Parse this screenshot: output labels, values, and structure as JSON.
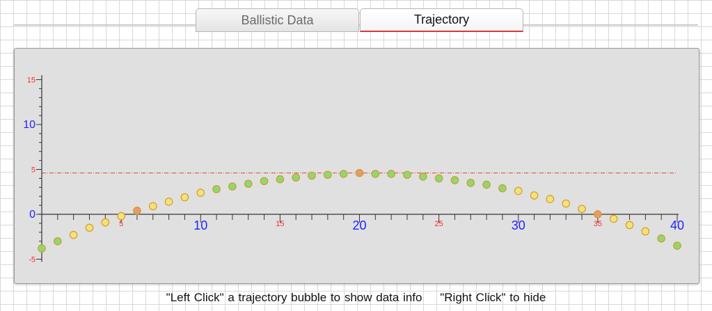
{
  "tabs": [
    {
      "label": "Ballistic Data",
      "active": false
    },
    {
      "label": "Trajectory",
      "active": true
    }
  ],
  "instructions": {
    "left": "\"Left Click\" a trajectory bubble to show data info",
    "right": "\"Right Click\" to hide"
  },
  "colors": {
    "major_tick_label": "#2323ff",
    "minor_tick_label": "#ff2a2a",
    "zero_line_label": "#2323ff",
    "sight_line": "#d94a2a",
    "bubble_green": "#8ed873",
    "bubble_yellow": "#f3e27a",
    "bubble_orange": "#e59b6f",
    "bubble_outline": "#d49a2a"
  },
  "chart_data": {
    "type": "scatter",
    "title": "",
    "xlabel": "",
    "ylabel": "",
    "xlim": [
      0,
      40
    ],
    "ylim": [
      -5,
      16
    ],
    "x_tick_labels": [
      {
        "value": 5,
        "label": "5",
        "major": false
      },
      {
        "value": 10,
        "label": "10",
        "major": true
      },
      {
        "value": 15,
        "label": "15",
        "major": false
      },
      {
        "value": 20,
        "label": "20",
        "major": true
      },
      {
        "value": 25,
        "label": "25",
        "major": false
      },
      {
        "value": 30,
        "label": "30",
        "major": true
      },
      {
        "value": 35,
        "label": "35",
        "major": false
      },
      {
        "value": 40,
        "label": "40",
        "major": true
      }
    ],
    "y_tick_labels": [
      {
        "value": -5,
        "label": "-5",
        "major": false
      },
      {
        "value": 0,
        "label": "0",
        "major": true
      },
      {
        "value": 5,
        "label": "5",
        "major": false
      },
      {
        "value": 10,
        "label": "10",
        "major": true
      },
      {
        "value": 15,
        "label": "15",
        "major": false
      }
    ],
    "sight_line_y": 4.6,
    "grid": false,
    "trajectory": [
      {
        "x": 0,
        "y": -3.8,
        "color": "green"
      },
      {
        "x": 1,
        "y": -3.0,
        "color": "green"
      },
      {
        "x": 2,
        "y": -2.3,
        "color": "yellow"
      },
      {
        "x": 3,
        "y": -1.5,
        "color": "yellow"
      },
      {
        "x": 4,
        "y": -0.9,
        "color": "yellow"
      },
      {
        "x": 5,
        "y": -0.2,
        "color": "yellow"
      },
      {
        "x": 6,
        "y": 0.4,
        "color": "orange"
      },
      {
        "x": 7,
        "y": 0.9,
        "color": "yellow"
      },
      {
        "x": 8,
        "y": 1.4,
        "color": "yellow"
      },
      {
        "x": 9,
        "y": 1.9,
        "color": "yellow"
      },
      {
        "x": 10,
        "y": 2.4,
        "color": "yellow"
      },
      {
        "x": 11,
        "y": 2.8,
        "color": "green"
      },
      {
        "x": 12,
        "y": 3.1,
        "color": "green"
      },
      {
        "x": 13,
        "y": 3.4,
        "color": "green"
      },
      {
        "x": 14,
        "y": 3.7,
        "color": "green"
      },
      {
        "x": 15,
        "y": 3.9,
        "color": "green"
      },
      {
        "x": 16,
        "y": 4.1,
        "color": "green"
      },
      {
        "x": 17,
        "y": 4.3,
        "color": "green"
      },
      {
        "x": 18,
        "y": 4.4,
        "color": "green"
      },
      {
        "x": 19,
        "y": 4.5,
        "color": "green"
      },
      {
        "x": 20,
        "y": 4.6,
        "color": "orange"
      },
      {
        "x": 21,
        "y": 4.5,
        "color": "green"
      },
      {
        "x": 22,
        "y": 4.5,
        "color": "green"
      },
      {
        "x": 23,
        "y": 4.4,
        "color": "green"
      },
      {
        "x": 24,
        "y": 4.2,
        "color": "green"
      },
      {
        "x": 25,
        "y": 4.0,
        "color": "green"
      },
      {
        "x": 26,
        "y": 3.8,
        "color": "green"
      },
      {
        "x": 27,
        "y": 3.5,
        "color": "green"
      },
      {
        "x": 28,
        "y": 3.3,
        "color": "green"
      },
      {
        "x": 29,
        "y": 2.9,
        "color": "green"
      },
      {
        "x": 30,
        "y": 2.6,
        "color": "yellow"
      },
      {
        "x": 31,
        "y": 2.1,
        "color": "yellow"
      },
      {
        "x": 32,
        "y": 1.7,
        "color": "yellow"
      },
      {
        "x": 33,
        "y": 1.2,
        "color": "yellow"
      },
      {
        "x": 34,
        "y": 0.6,
        "color": "yellow"
      },
      {
        "x": 35,
        "y": 0.0,
        "color": "orange"
      },
      {
        "x": 36,
        "y": -0.5,
        "color": "yellow"
      },
      {
        "x": 37,
        "y": -1.2,
        "color": "yellow"
      },
      {
        "x": 38,
        "y": -1.9,
        "color": "yellow"
      },
      {
        "x": 39,
        "y": -2.7,
        "color": "green"
      },
      {
        "x": 40,
        "y": -3.5,
        "color": "green"
      }
    ]
  }
}
